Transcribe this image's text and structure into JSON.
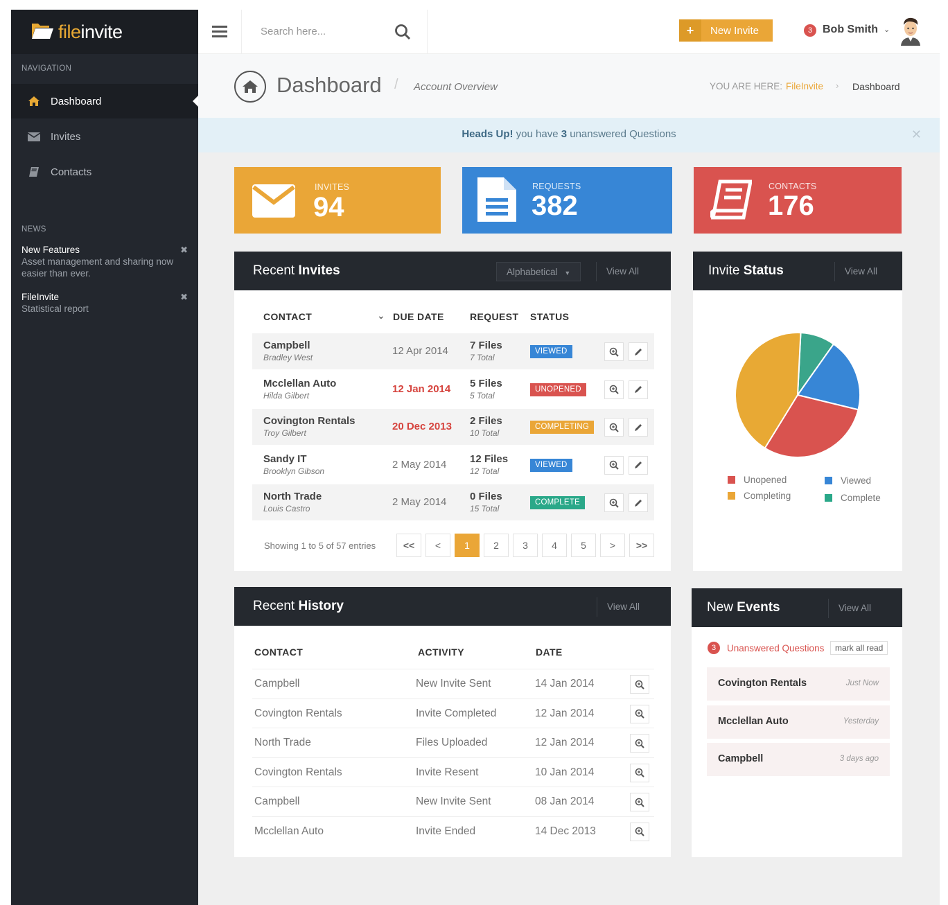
{
  "app": {
    "logo_text_a": "file",
    "logo_text_b": "invite"
  },
  "sidebar": {
    "nav_label": "NAVIGATION",
    "items": [
      {
        "label": "Dashboard",
        "icon": "home-icon"
      },
      {
        "label": "Invites",
        "icon": "envelope-icon"
      },
      {
        "label": "Contacts",
        "icon": "book-icon"
      }
    ],
    "news_label": "NEWS",
    "news": [
      {
        "title": "New Features",
        "text": "Asset management and sharing now easier than ever."
      },
      {
        "title": "FileInvite",
        "text": "Statistical report"
      }
    ]
  },
  "topbar": {
    "search_placeholder": "Search here...",
    "new_invite_label": "New Invite",
    "notification_count": "3",
    "user_name": "Bob Smith"
  },
  "pagehead": {
    "title": "Dashboard",
    "subtitle": "Account Overview",
    "breadcrumb_prefix": "YOU ARE HERE:",
    "breadcrumb_link": "FileInvite",
    "breadcrumb_current": "Dashboard"
  },
  "alert": {
    "strong": "Heads Up!",
    "text_a": " you have ",
    "count": "3",
    "text_b": " unanswered Questions"
  },
  "stats": [
    {
      "label": "INVITES",
      "value": "94",
      "color": "#eaa637",
      "icon": "envelope-icon"
    },
    {
      "label": "REQUESTS",
      "value": "382",
      "color": "#3786d6",
      "icon": "document-icon"
    },
    {
      "label": "CONTACTS",
      "value": "176",
      "color": "#d9534f",
      "icon": "book-icon"
    }
  ],
  "recent_invites": {
    "title_a": "Recent ",
    "title_b": "Invites",
    "sort_label": "Alphabetical",
    "view_all": "View All",
    "headers": {
      "contact": "CONTACT",
      "due": "DUE DATE",
      "request": "REQUEST",
      "status": "STATUS"
    },
    "rows": [
      {
        "name": "Campbell",
        "person": "Bradley West",
        "due": "12 Apr 2014",
        "files": "7 Files",
        "total": "7 Total",
        "status": "VIEWED",
        "status_color": "#3786d6",
        "overdue": false
      },
      {
        "name": "Mcclellan Auto",
        "person": "Hilda Gilbert",
        "due": "12 Jan 2014",
        "files": "5 Files",
        "total": "5 Total",
        "status": "UNOPENED",
        "status_color": "#d9534f",
        "overdue": true
      },
      {
        "name": "Covington Rentals",
        "person": "Troy Gilbert",
        "due": "20 Dec 2013",
        "files": "2 Files",
        "total": "10 Total",
        "status": "COMPLETING",
        "status_color": "#eaa637",
        "overdue": true
      },
      {
        "name": "Sandy IT",
        "person": "Brooklyn Gibson",
        "due": "2 May 2014",
        "files": "12 Files",
        "total": "12 Total",
        "status": "VIEWED",
        "status_color": "#3786d6",
        "overdue": false
      },
      {
        "name": "North Trade",
        "person": "Louis Castro",
        "due": "2 May 2014",
        "files": "0 Files",
        "total": "15 Total",
        "status": "COMPLETE",
        "status_color": "#2aa889",
        "overdue": false
      }
    ],
    "showing": "Showing 1 to 5 of 57 entries",
    "pages": [
      "1",
      "2",
      "3",
      "4",
      "5"
    ],
    "current_page": "1"
  },
  "invite_status": {
    "title_a": "Invite ",
    "title_b": "Status",
    "view_all": "View All",
    "legend": [
      {
        "label": "Unopened",
        "color": "#d9534f"
      },
      {
        "label": "Viewed",
        "color": "#3786d6"
      },
      {
        "label": "Completing",
        "color": "#eaa637"
      },
      {
        "label": "Complete",
        "color": "#2aa889"
      }
    ]
  },
  "chart_data": {
    "type": "pie",
    "categories": [
      "Complete",
      "Viewed",
      "Unopened",
      "Completing"
    ],
    "values": [
      9,
      19,
      30,
      42
    ],
    "colors": [
      "#3aa58a",
      "#3786d6",
      "#d9534f",
      "#e8a934"
    ]
  },
  "recent_history": {
    "title_a": "Recent ",
    "title_b": "History",
    "view_all": "View All",
    "headers": {
      "contact": "CONTACT",
      "activity": "ACTIVITY",
      "date": "DATE"
    },
    "rows": [
      {
        "contact": "Campbell",
        "activity": "New Invite Sent",
        "date": "14 Jan 2014"
      },
      {
        "contact": "Covington Rentals",
        "activity": "Invite Completed",
        "date": "12 Jan 2014"
      },
      {
        "contact": "North Trade",
        "activity": "Files Uploaded",
        "date": "12 Jan 2014"
      },
      {
        "contact": "Covington Rentals",
        "activity": "Invite Resent",
        "date": "10 Jan 2014"
      },
      {
        "contact": "Campbell",
        "activity": "New Invite Sent",
        "date": "08 Jan 2014"
      },
      {
        "contact": "Mcclellan Auto",
        "activity": "Invite Ended",
        "date": "14 Dec 2013"
      }
    ]
  },
  "new_events": {
    "title_a": "New ",
    "title_b": "Events",
    "view_all": "View All",
    "count": "3",
    "unanswered_label": "Unanswered Questions",
    "mark_all_read": "mark all read",
    "items": [
      {
        "name": "Covington Rentals",
        "time": "Just Now"
      },
      {
        "name": "Mcclellan Auto",
        "time": "Yesterday"
      },
      {
        "name": "Campbell",
        "time": "3 days ago"
      }
    ]
  }
}
